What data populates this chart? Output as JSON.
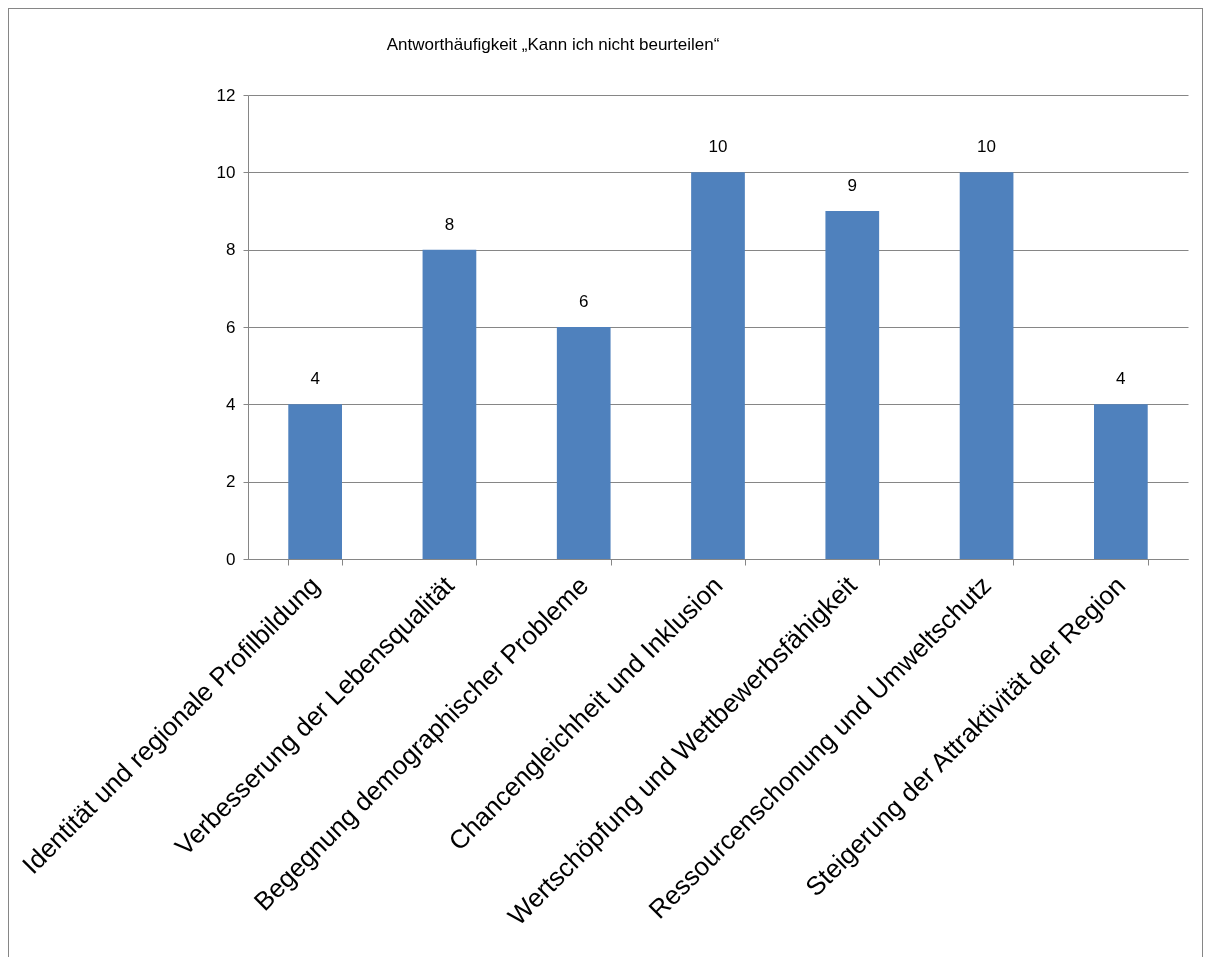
{
  "chart_data": {
    "type": "bar",
    "title": "Antworthäufigkeit „Kann ich nicht beurteilen“",
    "categories": [
      "Identität und regionale Profilbildung",
      "Verbesserung der Lebensqualität",
      "Begegnung demographischer Probleme",
      "Chancengleichheit und Inklusion",
      "Wertschöpfung und Wettbewerbsfähigkeit",
      "Ressourcenschonung und Umweltschutz",
      "Steigerung der Attraktivität der Region"
    ],
    "values": [
      4,
      8,
      6,
      10,
      9,
      10,
      4
    ],
    "color": "#4f81bd",
    "ylim": [
      0,
      12
    ],
    "yticks": [
      0,
      2,
      4,
      6,
      8,
      10,
      12
    ],
    "grid": "y",
    "data_labels": true
  }
}
